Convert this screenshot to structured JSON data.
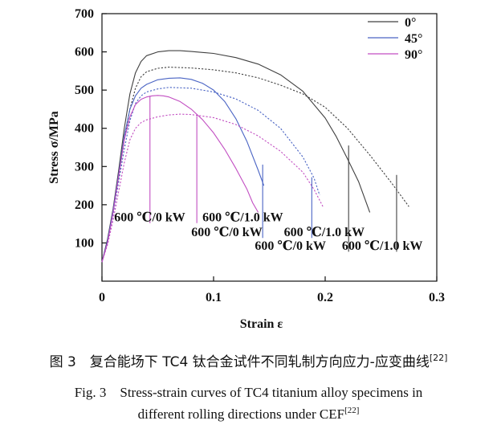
{
  "chart_data": {
    "type": "line",
    "xlabel": "Strain ε",
    "ylabel": "Stress σ/MPa",
    "xlim": [
      0,
      0.3
    ],
    "ylim": [
      0,
      700
    ],
    "xticks": [
      "0",
      "0.1",
      "0.2",
      "0.3"
    ],
    "yticks": [
      "100",
      "200",
      "300",
      "400",
      "500",
      "600",
      "700"
    ],
    "legend_position": "top-right",
    "legend": [
      {
        "label": "0°",
        "color": "#404040"
      },
      {
        "label": "45°",
        "color": "#4a64c4"
      },
      {
        "label": "90°",
        "color": "#c24ec2"
      }
    ],
    "series": [
      {
        "direction": "0°",
        "condition": "600 ℃/0 kW",
        "style": "solid",
        "color": "#404040",
        "x": [
          0,
          0.005,
          0.01,
          0.015,
          0.02,
          0.025,
          0.03,
          0.035,
          0.04,
          0.05,
          0.06,
          0.07,
          0.08,
          0.1,
          0.12,
          0.14,
          0.16,
          0.18,
          0.2,
          0.21,
          0.22,
          0.23,
          0.24
        ],
        "y": [
          50,
          110,
          190,
          290,
          400,
          490,
          545,
          575,
          590,
          600,
          603,
          603,
          601,
          596,
          585,
          568,
          540,
          497,
          427,
          378,
          320,
          260,
          180
        ]
      },
      {
        "direction": "0°",
        "condition": "600 ℃/1.0 kW",
        "style": "dotted",
        "color": "#404040",
        "x": [
          0,
          0.005,
          0.01,
          0.015,
          0.02,
          0.025,
          0.03,
          0.035,
          0.04,
          0.05,
          0.06,
          0.08,
          0.1,
          0.12,
          0.14,
          0.16,
          0.18,
          0.2,
          0.22,
          0.24,
          0.26,
          0.275
        ],
        "y": [
          50,
          105,
          180,
          270,
          370,
          450,
          505,
          535,
          548,
          557,
          560,
          558,
          553,
          545,
          532,
          513,
          490,
          455,
          400,
          330,
          255,
          195
        ]
      },
      {
        "direction": "45°",
        "condition": "600 ℃/0 kW",
        "style": "solid",
        "color": "#4a64c4",
        "x": [
          0,
          0.005,
          0.01,
          0.015,
          0.02,
          0.025,
          0.03,
          0.035,
          0.04,
          0.05,
          0.06,
          0.07,
          0.08,
          0.09,
          0.1,
          0.11,
          0.12,
          0.13,
          0.14,
          0.145
        ],
        "y": [
          50,
          105,
          185,
          280,
          380,
          450,
          485,
          505,
          515,
          527,
          531,
          532,
          528,
          518,
          500,
          470,
          425,
          365,
          290,
          250
        ]
      },
      {
        "direction": "45°",
        "condition": "600 ℃/1.0 kW",
        "style": "dotted",
        "color": "#4a64c4",
        "x": [
          0,
          0.005,
          0.01,
          0.015,
          0.02,
          0.025,
          0.03,
          0.035,
          0.04,
          0.05,
          0.06,
          0.08,
          0.1,
          0.12,
          0.14,
          0.16,
          0.18,
          0.19,
          0.195
        ],
        "y": [
          50,
          100,
          175,
          260,
          345,
          420,
          465,
          485,
          495,
          503,
          507,
          505,
          495,
          477,
          447,
          400,
          325,
          270,
          225
        ]
      },
      {
        "direction": "90°",
        "condition": "600 ℃/0 kW",
        "style": "solid",
        "color": "#c24ec2",
        "x": [
          0,
          0.005,
          0.01,
          0.015,
          0.02,
          0.025,
          0.03,
          0.035,
          0.04,
          0.045,
          0.05,
          0.055,
          0.06,
          0.07,
          0.08,
          0.09,
          0.1,
          0.11,
          0.12,
          0.13,
          0.135,
          0.14
        ],
        "y": [
          50,
          100,
          180,
          275,
          370,
          430,
          462,
          476,
          482,
          485,
          486,
          485,
          482,
          470,
          450,
          423,
          388,
          345,
          295,
          240,
          205,
          180
        ]
      },
      {
        "direction": "90°",
        "condition": "600 ℃/1.0 kW",
        "style": "dotted",
        "color": "#c24ec2",
        "x": [
          0,
          0.005,
          0.01,
          0.015,
          0.02,
          0.025,
          0.03,
          0.035,
          0.04,
          0.05,
          0.06,
          0.07,
          0.08,
          0.1,
          0.12,
          0.14,
          0.16,
          0.18,
          0.19,
          0.198
        ],
        "y": [
          50,
          95,
          160,
          235,
          310,
          370,
          400,
          415,
          422,
          430,
          435,
          437,
          436,
          428,
          410,
          380,
          340,
          285,
          240,
          195
        ]
      }
    ],
    "markers": [
      {
        "x": 0.043,
        "y_top": 485,
        "color": "#c24ec2"
      },
      {
        "x": 0.085,
        "y_top": 432,
        "color": "#c24ec2"
      },
      {
        "x": 0.144,
        "y_top": 305,
        "color": "#4a64c4"
      },
      {
        "x": 0.188,
        "y_top": 272,
        "color": "#4a64c4"
      },
      {
        "x": 0.221,
        "y_top": 355,
        "color": "#404040"
      },
      {
        "x": 0.264,
        "y_top": 278,
        "color": "#404040"
      }
    ],
    "annotations": [
      {
        "text": "600 ℃/0 kW",
        "x": 0.011,
        "y": 157
      },
      {
        "text": "600 ℃/1.0 kW",
        "x": 0.09,
        "y": 157
      },
      {
        "text": "600 ℃/0 kW",
        "x": 0.08,
        "y": 118
      },
      {
        "text": "600 ℃/1.0 kW",
        "x": 0.163,
        "y": 118
      },
      {
        "text": "600 ℃/0 kW",
        "x": 0.137,
        "y": 82
      },
      {
        "text": "600 ℃/1.0 kW",
        "x": 0.215,
        "y": 82
      }
    ]
  },
  "caption": {
    "cn": "图 3　复合能场下 TC4 钛合金试件不同轧制方向应力-应变曲线",
    "cn_ref": "[22]",
    "en_line1": "Fig. 3　Stress-strain curves of TC4 titanium alloy specimens in",
    "en_line2": "different rolling directions under CEF",
    "en_ref": "[22]"
  }
}
